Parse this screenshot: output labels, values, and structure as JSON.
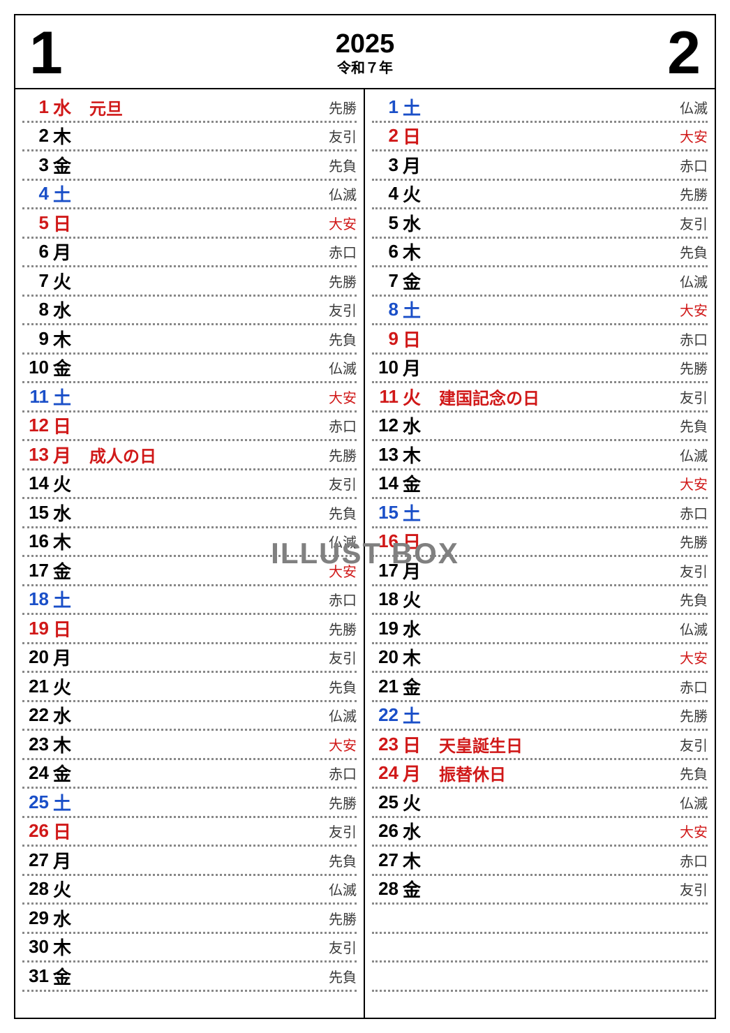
{
  "header": {
    "left_month": "1",
    "right_month": "2",
    "year": "2025",
    "era": "令和７年"
  },
  "watermark": "ILLUST BOX",
  "colors": {
    "sunday_holiday": "#d01818",
    "saturday": "#1a4fc8",
    "weekday": "#000000",
    "rokuyo": "#3a3a3a",
    "rokuyo_red": "#d01818",
    "border": "#000000",
    "dotted": "#888888",
    "background": "#ffffff"
  },
  "months": {
    "jan": [
      {
        "d": "1",
        "w": "水",
        "h": "元旦",
        "r": "先勝",
        "dc": "red",
        "rc": ""
      },
      {
        "d": "2",
        "w": "木",
        "h": "",
        "r": "友引",
        "dc": "black",
        "rc": ""
      },
      {
        "d": "3",
        "w": "金",
        "h": "",
        "r": "先負",
        "dc": "black",
        "rc": ""
      },
      {
        "d": "4",
        "w": "土",
        "h": "",
        "r": "仏滅",
        "dc": "blue",
        "rc": ""
      },
      {
        "d": "5",
        "w": "日",
        "h": "",
        "r": "大安",
        "dc": "red",
        "rc": "red"
      },
      {
        "d": "6",
        "w": "月",
        "h": "",
        "r": "赤口",
        "dc": "black",
        "rc": ""
      },
      {
        "d": "7",
        "w": "火",
        "h": "",
        "r": "先勝",
        "dc": "black",
        "rc": ""
      },
      {
        "d": "8",
        "w": "水",
        "h": "",
        "r": "友引",
        "dc": "black",
        "rc": ""
      },
      {
        "d": "9",
        "w": "木",
        "h": "",
        "r": "先負",
        "dc": "black",
        "rc": ""
      },
      {
        "d": "10",
        "w": "金",
        "h": "",
        "r": "仏滅",
        "dc": "black",
        "rc": ""
      },
      {
        "d": "11",
        "w": "土",
        "h": "",
        "r": "大安",
        "dc": "blue",
        "rc": "red"
      },
      {
        "d": "12",
        "w": "日",
        "h": "",
        "r": "赤口",
        "dc": "red",
        "rc": ""
      },
      {
        "d": "13",
        "w": "月",
        "h": "成人の日",
        "r": "先勝",
        "dc": "red",
        "rc": ""
      },
      {
        "d": "14",
        "w": "火",
        "h": "",
        "r": "友引",
        "dc": "black",
        "rc": ""
      },
      {
        "d": "15",
        "w": "水",
        "h": "",
        "r": "先負",
        "dc": "black",
        "rc": ""
      },
      {
        "d": "16",
        "w": "木",
        "h": "",
        "r": "仏滅",
        "dc": "black",
        "rc": ""
      },
      {
        "d": "17",
        "w": "金",
        "h": "",
        "r": "大安",
        "dc": "black",
        "rc": "red"
      },
      {
        "d": "18",
        "w": "土",
        "h": "",
        "r": "赤口",
        "dc": "blue",
        "rc": ""
      },
      {
        "d": "19",
        "w": "日",
        "h": "",
        "r": "先勝",
        "dc": "red",
        "rc": ""
      },
      {
        "d": "20",
        "w": "月",
        "h": "",
        "r": "友引",
        "dc": "black",
        "rc": ""
      },
      {
        "d": "21",
        "w": "火",
        "h": "",
        "r": "先負",
        "dc": "black",
        "rc": ""
      },
      {
        "d": "22",
        "w": "水",
        "h": "",
        "r": "仏滅",
        "dc": "black",
        "rc": ""
      },
      {
        "d": "23",
        "w": "木",
        "h": "",
        "r": "大安",
        "dc": "black",
        "rc": "red"
      },
      {
        "d": "24",
        "w": "金",
        "h": "",
        "r": "赤口",
        "dc": "black",
        "rc": ""
      },
      {
        "d": "25",
        "w": "土",
        "h": "",
        "r": "先勝",
        "dc": "blue",
        "rc": ""
      },
      {
        "d": "26",
        "w": "日",
        "h": "",
        "r": "友引",
        "dc": "red",
        "rc": ""
      },
      {
        "d": "27",
        "w": "月",
        "h": "",
        "r": "先負",
        "dc": "black",
        "rc": ""
      },
      {
        "d": "28",
        "w": "火",
        "h": "",
        "r": "仏滅",
        "dc": "black",
        "rc": ""
      },
      {
        "d": "29",
        "w": "水",
        "h": "",
        "r": "先勝",
        "dc": "black",
        "rc": ""
      },
      {
        "d": "30",
        "w": "木",
        "h": "",
        "r": "友引",
        "dc": "black",
        "rc": ""
      },
      {
        "d": "31",
        "w": "金",
        "h": "",
        "r": "先負",
        "dc": "black",
        "rc": ""
      }
    ],
    "feb": [
      {
        "d": "1",
        "w": "土",
        "h": "",
        "r": "仏滅",
        "dc": "blue",
        "rc": ""
      },
      {
        "d": "2",
        "w": "日",
        "h": "",
        "r": "大安",
        "dc": "red",
        "rc": "red"
      },
      {
        "d": "3",
        "w": "月",
        "h": "",
        "r": "赤口",
        "dc": "black",
        "rc": ""
      },
      {
        "d": "4",
        "w": "火",
        "h": "",
        "r": "先勝",
        "dc": "black",
        "rc": ""
      },
      {
        "d": "5",
        "w": "水",
        "h": "",
        "r": "友引",
        "dc": "black",
        "rc": ""
      },
      {
        "d": "6",
        "w": "木",
        "h": "",
        "r": "先負",
        "dc": "black",
        "rc": ""
      },
      {
        "d": "7",
        "w": "金",
        "h": "",
        "r": "仏滅",
        "dc": "black",
        "rc": ""
      },
      {
        "d": "8",
        "w": "土",
        "h": "",
        "r": "大安",
        "dc": "blue",
        "rc": "red"
      },
      {
        "d": "9",
        "w": "日",
        "h": "",
        "r": "赤口",
        "dc": "red",
        "rc": ""
      },
      {
        "d": "10",
        "w": "月",
        "h": "",
        "r": "先勝",
        "dc": "black",
        "rc": ""
      },
      {
        "d": "11",
        "w": "火",
        "h": "建国記念の日",
        "r": "友引",
        "dc": "red",
        "rc": ""
      },
      {
        "d": "12",
        "w": "水",
        "h": "",
        "r": "先負",
        "dc": "black",
        "rc": ""
      },
      {
        "d": "13",
        "w": "木",
        "h": "",
        "r": "仏滅",
        "dc": "black",
        "rc": ""
      },
      {
        "d": "14",
        "w": "金",
        "h": "",
        "r": "大安",
        "dc": "black",
        "rc": "red"
      },
      {
        "d": "15",
        "w": "土",
        "h": "",
        "r": "赤口",
        "dc": "blue",
        "rc": ""
      },
      {
        "d": "16",
        "w": "日",
        "h": "",
        "r": "先勝",
        "dc": "red",
        "rc": ""
      },
      {
        "d": "17",
        "w": "月",
        "h": "",
        "r": "友引",
        "dc": "black",
        "rc": ""
      },
      {
        "d": "18",
        "w": "火",
        "h": "",
        "r": "先負",
        "dc": "black",
        "rc": ""
      },
      {
        "d": "19",
        "w": "水",
        "h": "",
        "r": "仏滅",
        "dc": "black",
        "rc": ""
      },
      {
        "d": "20",
        "w": "木",
        "h": "",
        "r": "大安",
        "dc": "black",
        "rc": "red"
      },
      {
        "d": "21",
        "w": "金",
        "h": "",
        "r": "赤口",
        "dc": "black",
        "rc": ""
      },
      {
        "d": "22",
        "w": "土",
        "h": "",
        "r": "先勝",
        "dc": "blue",
        "rc": ""
      },
      {
        "d": "23",
        "w": "日",
        "h": "天皇誕生日",
        "r": "友引",
        "dc": "red",
        "rc": ""
      },
      {
        "d": "24",
        "w": "月",
        "h": "振替休日",
        "r": "先負",
        "dc": "red",
        "rc": ""
      },
      {
        "d": "25",
        "w": "火",
        "h": "",
        "r": "仏滅",
        "dc": "black",
        "rc": ""
      },
      {
        "d": "26",
        "w": "水",
        "h": "",
        "r": "大安",
        "dc": "black",
        "rc": "red"
      },
      {
        "d": "27",
        "w": "木",
        "h": "",
        "r": "赤口",
        "dc": "black",
        "rc": ""
      },
      {
        "d": "28",
        "w": "金",
        "h": "",
        "r": "友引",
        "dc": "black",
        "rc": ""
      },
      {
        "d": "",
        "w": "",
        "h": "",
        "r": "",
        "dc": "black",
        "rc": ""
      },
      {
        "d": "",
        "w": "",
        "h": "",
        "r": "",
        "dc": "black",
        "rc": ""
      },
      {
        "d": "",
        "w": "",
        "h": "",
        "r": "",
        "dc": "black",
        "rc": ""
      }
    ]
  }
}
